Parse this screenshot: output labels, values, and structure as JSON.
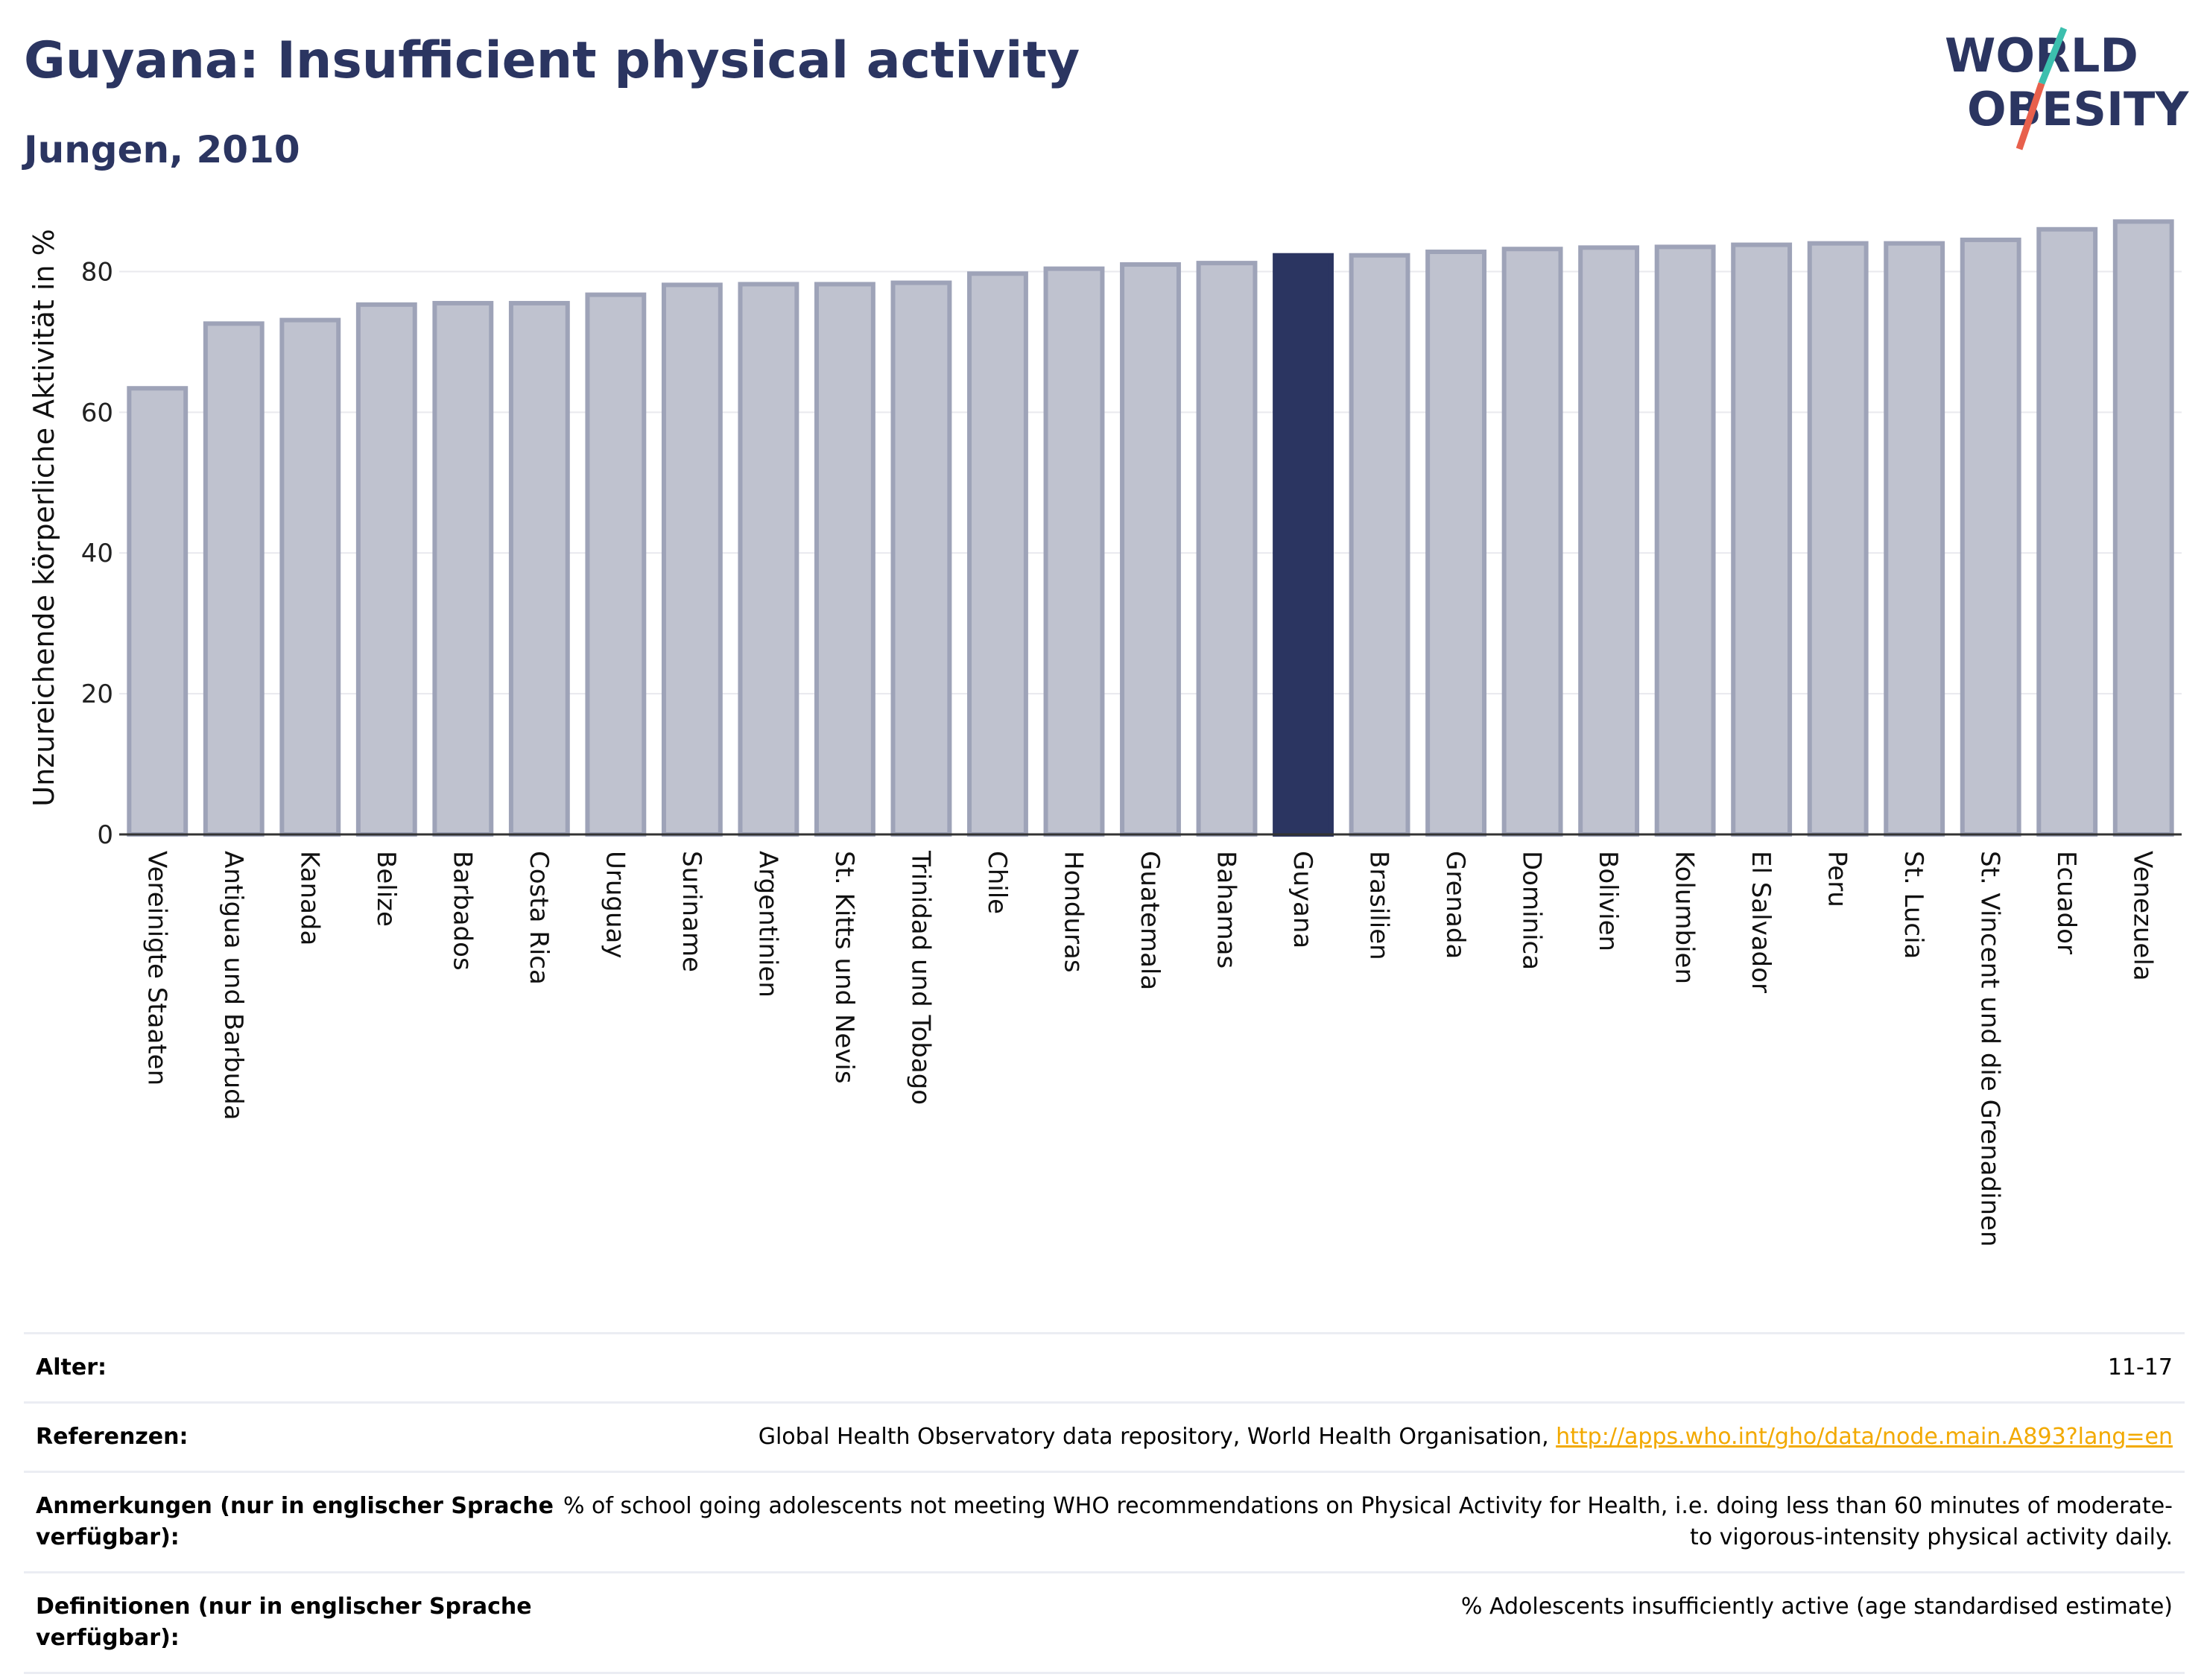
{
  "header": {
    "title": "Guyana: Insufficient physical activity",
    "subtitle": "Jungen, 2010"
  },
  "logo": {
    "line1": "WORLD",
    "line2": "OBESITY",
    "text_color": "#2b3561",
    "slash_top_color": "#3cbfae",
    "slash_bottom_color": "#e8604c"
  },
  "colors": {
    "bar_fill": "#bfc2cf",
    "bar_stroke": "#9ea3b8",
    "highlight": "#2b3561",
    "grid": "#e9e9ee"
  },
  "chart_data": {
    "type": "bar",
    "title": "",
    "xlabel": "",
    "ylabel": "Unzureichende körperliche Aktivität in %",
    "ylim": [
      0,
      90
    ],
    "yticks": [
      0,
      20,
      40,
      60,
      80
    ],
    "grid": true,
    "highlight": "Guyana",
    "categories": [
      "Vereinigte Staaten",
      "Antigua und Barbuda",
      "Kanada",
      "Belize",
      "Barbados",
      "Costa Rica",
      "Uruguay",
      "Suriname",
      "Argentinien",
      "St. Kitts und Nevis",
      "Trinidad und Tobago",
      "Chile",
      "Honduras",
      "Guatemala",
      "Bahamas",
      "Guyana",
      "Brasilien",
      "Grenada",
      "Dominica",
      "Bolivien",
      "Kolumbien",
      "El Salvador",
      "Peru",
      "St. Lucia",
      "St. Vincent und die Grenadinen",
      "Ecuador",
      "Venezuela"
    ],
    "values": [
      63.4,
      72.6,
      73.1,
      75.3,
      75.5,
      75.5,
      76.7,
      78.1,
      78.2,
      78.2,
      78.4,
      79.7,
      80.4,
      81.0,
      81.2,
      82.3,
      82.3,
      82.8,
      83.2,
      83.4,
      83.5,
      83.8,
      84.0,
      84.0,
      84.5,
      86.0,
      87.1
    ]
  },
  "meta": {
    "rows": [
      {
        "label": "Alter:",
        "value": "11-17",
        "link": ""
      },
      {
        "label": "Referenzen:",
        "value": "Global Health Observatory data repository, World Health Organisation, ",
        "link": "http://apps.who.int/gho/data/node.main.A893?lang=en"
      },
      {
        "label": "Anmerkungen (nur in englischer Sprache verfügbar):",
        "value": "% of school going adolescents not meeting WHO recommendations on Physical Activity for Health, i.e. doing less than 60 minutes of moderate- to vigorous-intensity physical activity daily.",
        "link": ""
      },
      {
        "label": "Definitionen (nur in englischer Sprache verfügbar):",
        "value": "% Adolescents insufficiently active (age standardised estimate)",
        "link": ""
      }
    ]
  }
}
